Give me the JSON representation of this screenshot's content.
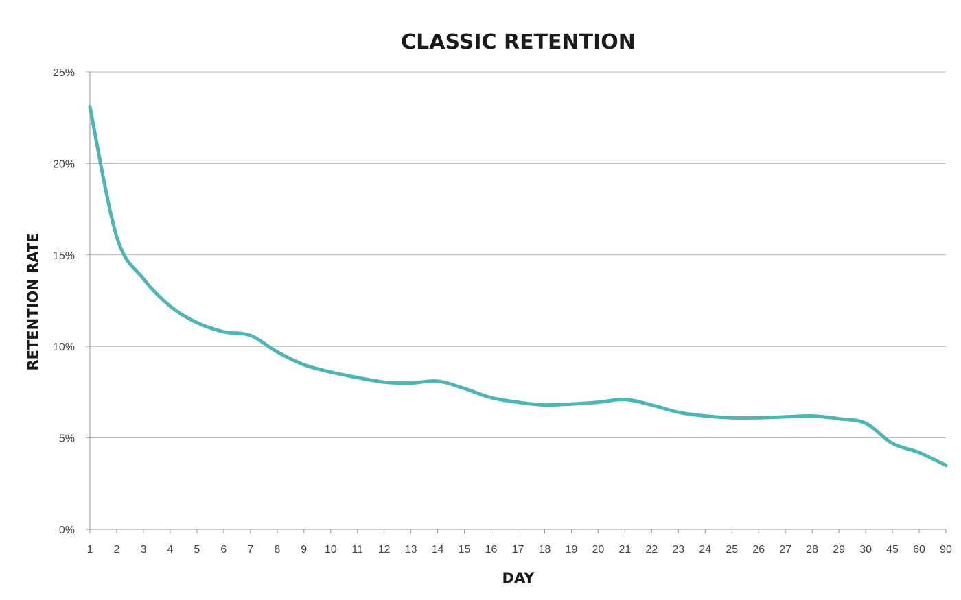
{
  "chart_data": {
    "type": "line",
    "title": "CLASSIC RETENTION",
    "xlabel": "DAY",
    "ylabel": "RETENTION RATE",
    "categories": [
      "1",
      "2",
      "3",
      "4",
      "5",
      "6",
      "7",
      "8",
      "9",
      "10",
      "11",
      "12",
      "13",
      "14",
      "15",
      "16",
      "17",
      "18",
      "19",
      "20",
      "21",
      "22",
      "23",
      "24",
      "25",
      "26",
      "27",
      "28",
      "29",
      "30",
      "45",
      "60",
      "90"
    ],
    "y_ticks": [
      "0%",
      "5%",
      "10%",
      "15%",
      "20%",
      "25%"
    ],
    "ylim": [
      0,
      25
    ],
    "y_unit": "%",
    "grid": "horizontal",
    "series": [
      {
        "values": [
          23.1,
          16.0,
          13.7,
          12.2,
          11.3,
          10.8,
          10.6,
          9.7,
          9.0,
          8.6,
          8.3,
          8.05,
          8.0,
          8.1,
          7.7,
          7.2,
          6.95,
          6.8,
          6.85,
          6.95,
          7.1,
          6.8,
          6.4,
          6.2,
          6.1,
          6.1,
          6.15,
          6.2,
          6.05,
          5.8,
          4.7,
          4.2,
          3.5
        ],
        "color": "#4db6b4"
      }
    ]
  }
}
